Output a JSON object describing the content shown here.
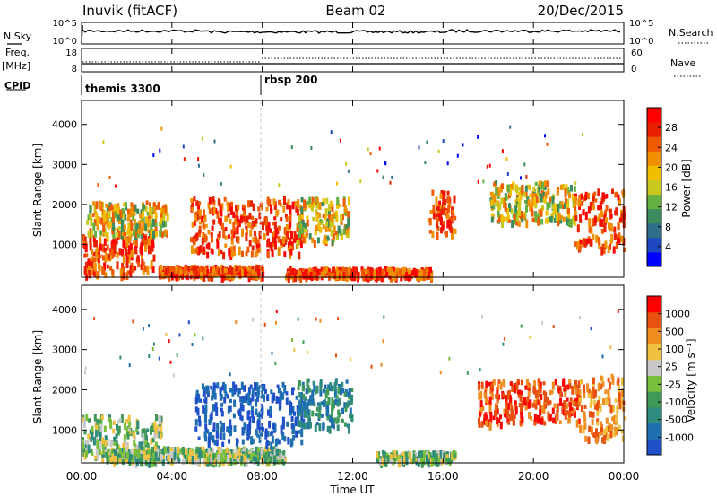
{
  "header": {
    "station": "Inuvik (fitACF)",
    "beam": "Beam 02",
    "date": "20/Dec/2015"
  },
  "top_panels": {
    "nsky_label": "N.Sky",
    "nsky_ticks": [
      "10^5",
      "10^0"
    ],
    "nsearch_label": "N.Search",
    "nsearch_ticks": [
      "10^5",
      "10^0"
    ],
    "freq_label": "Freq.",
    "freq_unit": "[MHz]",
    "freq_ticks": [
      "18",
      "8"
    ],
    "nave_label": "Nave",
    "nave_ticks": [
      "60",
      "0"
    ],
    "cpid_label": "CPID",
    "cpid_segments": [
      {
        "name": "themis 3300",
        "start_hour": 0
      },
      {
        "name": "rbsp 200",
        "start_hour": 8
      }
    ]
  },
  "chart_data": [
    {
      "type": "heatmap",
      "panel": "power",
      "ylabel": "Slant Range [km]",
      "xlabel": "",
      "ylim": [
        180,
        4600
      ],
      "yticks": [
        1000,
        2000,
        3000,
        4000
      ],
      "colorbar": {
        "label": "Power [dB]",
        "ticks": [
          "28",
          "24",
          "20",
          "16",
          "12",
          "8",
          "4"
        ],
        "colors": [
          "#0000ff",
          "#1f48c0",
          "#2e6e8a",
          "#3a8c5e",
          "#64b040",
          "#c8c81e",
          "#f0c000",
          "#f09000",
          "#f05a00",
          "#e82000",
          "#ff0000"
        ]
      },
      "echo_regions": [
        {
          "t0": 0.0,
          "t1": 3.2,
          "r0": 300,
          "r1": 1300,
          "level": "high"
        },
        {
          "t0": 0.2,
          "t1": 3.8,
          "r0": 1300,
          "r1": 2100,
          "level": "mid"
        },
        {
          "t0": 3.4,
          "t1": 8.0,
          "r0": 250,
          "r1": 500,
          "level": "high"
        },
        {
          "t0": 4.8,
          "t1": 9.8,
          "r0": 800,
          "r1": 2200,
          "level": "high"
        },
        {
          "t0": 9.5,
          "t1": 11.8,
          "r0": 1100,
          "r1": 2200,
          "level": "mid"
        },
        {
          "t0": 9.0,
          "t1": 15.5,
          "r0": 250,
          "r1": 450,
          "level": "high"
        },
        {
          "t0": 15.3,
          "t1": 16.5,
          "r0": 1300,
          "r1": 2400,
          "level": "high"
        },
        {
          "t0": 18.0,
          "t1": 21.8,
          "r0": 1600,
          "r1": 2600,
          "level": "mid"
        },
        {
          "t0": 21.8,
          "t1": 24.0,
          "r0": 900,
          "r1": 2400,
          "level": "high"
        }
      ]
    },
    {
      "type": "heatmap",
      "panel": "velocity",
      "ylabel": "Slant Range [km]",
      "xlabel": "Time UT",
      "ylim": [
        180,
        4600
      ],
      "yticks": [
        1000,
        2000,
        3000,
        4000
      ],
      "x": [
        "00:00",
        "04:00",
        "08:00",
        "12:00",
        "16:00",
        "20:00",
        "00:00"
      ],
      "colorbar": {
        "label": "Velocity [m s⁻¹]",
        "ticks": [
          "1000",
          "500",
          "100",
          "25",
          "-25",
          "-100",
          "-500",
          "-1000"
        ],
        "colors": [
          "#2050c8",
          "#1e6fb0",
          "#2f8b7e",
          "#3f9a57",
          "#78c03c",
          "#c8c8c8",
          "#f0c040",
          "#f08c20",
          "#e85010",
          "#ff0000"
        ]
      },
      "echo_regions": [
        {
          "t0": 0.0,
          "t1": 3.5,
          "r0": 300,
          "r1": 1400,
          "level": "toward_slow"
        },
        {
          "t0": 1.0,
          "t1": 9.0,
          "r0": 250,
          "r1": 600,
          "level": "toward_slow"
        },
        {
          "t0": 5.0,
          "t1": 9.8,
          "r0": 700,
          "r1": 2200,
          "level": "toward_fast"
        },
        {
          "t0": 9.5,
          "t1": 12.0,
          "r0": 1100,
          "r1": 2300,
          "level": "toward_med"
        },
        {
          "t0": 13.0,
          "t1": 16.5,
          "r0": 250,
          "r1": 500,
          "level": "toward_slow"
        },
        {
          "t0": 17.5,
          "t1": 22.0,
          "r0": 1200,
          "r1": 2300,
          "level": "away_fast"
        },
        {
          "t0": 22.0,
          "t1": 24.0,
          "r0": 800,
          "r1": 2400,
          "level": "away_med"
        }
      ]
    }
  ]
}
